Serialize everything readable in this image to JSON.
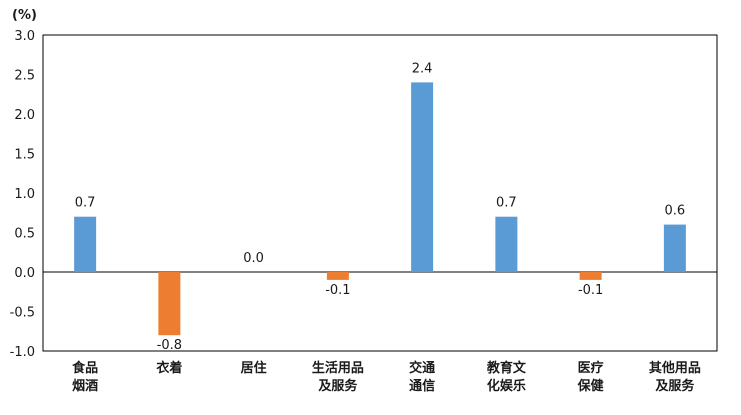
{
  "chart_data": {
    "type": "bar",
    "unit_label": "(%)",
    "categories": [
      [
        "食品",
        "烟酒"
      ],
      [
        "衣着"
      ],
      [
        "居住"
      ],
      [
        "生活用品",
        "及服务"
      ],
      [
        "交通",
        "通信"
      ],
      [
        "教育文",
        "化娱乐"
      ],
      [
        "医疗",
        "保健"
      ],
      [
        "其他用品",
        "及服务"
      ]
    ],
    "values": [
      0.7,
      -0.8,
      0.0,
      -0.1,
      2.4,
      0.7,
      -0.1,
      0.6
    ],
    "data_labels": [
      "0.7",
      "-0.8",
      "0.0",
      "-0.1",
      "2.4",
      "0.7",
      "-0.1",
      "0.6"
    ],
    "y_ticks": [
      "3.0",
      "2.5",
      "2.0",
      "1.5",
      "1.0",
      "0.5",
      "0.0",
      "-0.5",
      "-1.0"
    ],
    "ylim": [
      -1.0,
      3.0
    ],
    "grid": false,
    "colors": {
      "positive": "#5B9BD5",
      "negative": "#ED7D31",
      "axis": "#000000"
    }
  }
}
